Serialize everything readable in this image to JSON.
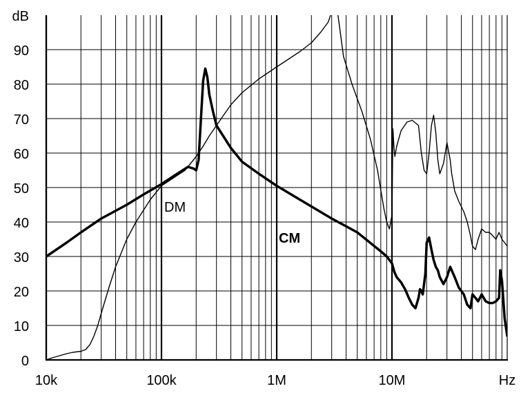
{
  "chart_data": {
    "type": "line",
    "title": "",
    "xlabel": "",
    "ylabel": "",
    "x_scale": "log",
    "xlim": [
      10000,
      100000000
    ],
    "ylim": [
      0,
      100
    ],
    "y_unit_label": "dB",
    "x_unit_label": "Hz",
    "x_tick_labels": [
      "10k",
      "100k",
      "1M",
      "10M"
    ],
    "y_tick_labels": [
      "0",
      "10",
      "20",
      "30",
      "40",
      "50",
      "60",
      "70",
      "80",
      "90"
    ],
    "grid": true,
    "series": [
      {
        "name": "DM",
        "line": "thin",
        "x": [
          10000,
          11000,
          13000,
          15000,
          17000,
          20000,
          22000,
          24000,
          26000,
          28000,
          30000,
          35000,
          40000,
          50000,
          60000,
          80000,
          100000,
          130000,
          160000,
          200000,
          230000,
          260000,
          300000,
          400000,
          500000,
          700000,
          1000000,
          1300000,
          1600000,
          2000000,
          2400000,
          2800000,
          3000000,
          3200000,
          3400000,
          3800000,
          4500000,
          5500000,
          6500000,
          7500000,
          8500000,
          9000000,
          9500000,
          10000000,
          10200000,
          10400000,
          10600000,
          11000000,
          12000000,
          13500000,
          15000000,
          17000000,
          18000000,
          19000000,
          20000000,
          21000000,
          22000000,
          23000000,
          24000000,
          25000000,
          26000000,
          28000000,
          30000000,
          32000000,
          33000000,
          35000000,
          38000000,
          42000000,
          45000000,
          48000000,
          50000000,
          53000000,
          56000000,
          60000000,
          65000000,
          70000000,
          75000000,
          80000000,
          85000000,
          90000000,
          95000000,
          100000000
        ],
        "values": [
          0,
          0.5,
          1.2,
          1.8,
          2.2,
          2.5,
          3,
          4.5,
          7,
          10,
          13.5,
          21,
          27,
          35,
          40,
          46.5,
          50.5,
          53,
          55,
          59,
          62,
          65,
          68,
          74,
          77.5,
          81.5,
          85,
          87.5,
          89.5,
          92,
          95,
          98,
          101,
          101,
          100,
          88,
          80,
          72,
          64,
          55,
          44,
          40,
          38,
          42,
          67,
          62,
          59,
          62,
          66.5,
          69,
          69.5,
          68,
          60,
          55,
          54,
          60,
          68,
          71,
          66,
          58,
          54,
          57,
          63,
          58,
          54,
          49,
          46,
          43,
          40,
          36,
          33,
          32,
          35,
          38,
          37,
          37,
          36,
          35,
          37,
          35,
          34,
          33
        ]
      },
      {
        "name": "CM",
        "line": "thick",
        "x": [
          10000,
          15000,
          20000,
          30000,
          50000,
          70000,
          100000,
          130000,
          170000,
          190000,
          200000,
          210000,
          220000,
          230000,
          240000,
          250000,
          260000,
          280000,
          300000,
          400000,
          500000,
          700000,
          1000000,
          2000000,
          3000000,
          5000000,
          8000000,
          9000000,
          9500000,
          10000000,
          10500000,
          11000000,
          12000000,
          13000000,
          14000000,
          15000000,
          16000000,
          17000000,
          17500000,
          18000000,
          18500000,
          19500000,
          20000000,
          21000000,
          22000000,
          23000000,
          24000000,
          25000000,
          26000000,
          28000000,
          30000000,
          32000000,
          35000000,
          38000000,
          42000000,
          45000000,
          48000000,
          50000000,
          53000000,
          56000000,
          60000000,
          65000000,
          70000000,
          75000000,
          80000000,
          85000000,
          87000000,
          90000000,
          95000000,
          100000000
        ],
        "values": [
          30,
          34,
          37,
          41,
          45,
          48,
          51,
          53.5,
          56,
          55.5,
          55,
          58,
          70,
          81,
          84.5,
          82,
          77,
          72,
          68,
          61.5,
          57.5,
          54,
          50.5,
          44.5,
          41,
          37,
          31.5,
          30,
          29,
          28,
          25.5,
          24,
          22.5,
          20.5,
          18,
          16,
          15,
          18,
          20.5,
          20,
          19,
          25,
          34,
          35.5,
          32,
          29,
          27,
          26,
          24,
          22,
          24,
          27,
          24,
          21,
          19,
          16,
          15,
          19,
          18,
          17,
          19,
          17,
          16.5,
          16.5,
          17,
          18,
          26,
          23,
          12,
          7
        ]
      }
    ],
    "annotations": [
      "DM",
      "CM"
    ]
  }
}
